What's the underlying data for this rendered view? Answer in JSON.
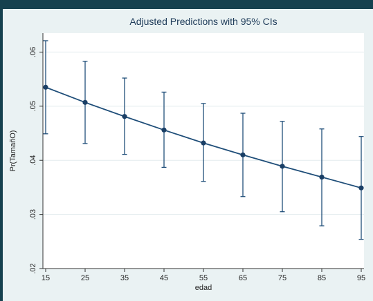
{
  "chart_data": {
    "type": "line",
    "title": "Adjusted Predictions with 95% CIs",
    "xlabel": "edad",
    "ylabel": "Pr(TamañO)",
    "x": [
      15,
      25,
      35,
      45,
      55,
      65,
      75,
      85,
      95
    ],
    "series": [
      {
        "values": [
          0.0535,
          0.0507,
          0.0481,
          0.0456,
          0.0432,
          0.041,
          0.0389,
          0.0369,
          0.0349
        ],
        "ci_lower": [
          0.0449,
          0.0431,
          0.0411,
          0.0387,
          0.0361,
          0.0333,
          0.0305,
          0.0279,
          0.0254
        ],
        "ci_upper": [
          0.0621,
          0.0583,
          0.0552,
          0.0526,
          0.0505,
          0.0487,
          0.0472,
          0.0458,
          0.0444
        ]
      }
    ],
    "xticks": [
      15,
      25,
      35,
      45,
      55,
      65,
      75,
      85,
      95
    ],
    "xtick_labels": [
      "15",
      "25",
      "35",
      "45",
      "55",
      "65",
      "75",
      "85",
      "95"
    ],
    "yticks": [
      0.02,
      0.03,
      0.04,
      0.05,
      0.06
    ],
    "ytick_labels": [
      ".02",
      ".03",
      ".04",
      ".05",
      ".06"
    ],
    "xlim": [
      15,
      95
    ],
    "ylim": [
      0.02,
      0.0635
    ],
    "grid": true,
    "colors": {
      "line": "#1f4e79",
      "marker": "#1a3f66",
      "grid": "#ffffff",
      "plot_bg": "#ffffff",
      "axis": "#333333"
    }
  }
}
